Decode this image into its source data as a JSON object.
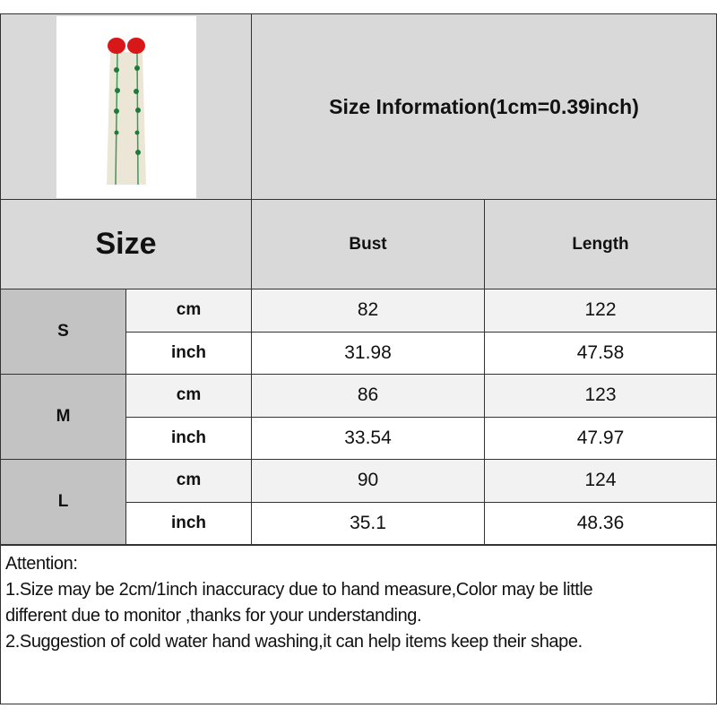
{
  "title": "Size Information(1cm=0.39inch)",
  "size_header": "Size",
  "columns": [
    "Bust",
    "Length"
  ],
  "rows": [
    {
      "size": "S",
      "cm": {
        "unit": "cm",
        "bust": "82",
        "length": "122"
      },
      "inch": {
        "unit": "inch",
        "bust": "31.98",
        "length": "47.58"
      }
    },
    {
      "size": "M",
      "cm": {
        "unit": "cm",
        "bust": "86",
        "length": "123"
      },
      "inch": {
        "unit": "inch",
        "bust": "33.54",
        "length": "47.97"
      }
    },
    {
      "size": "L",
      "cm": {
        "unit": "cm",
        "bust": "90",
        "length": "124"
      },
      "inch": {
        "unit": "inch",
        "bust": "35.1",
        "length": "48.36"
      }
    }
  ],
  "attention": {
    "heading": "Attention:",
    "line1": "1.Size may be 2cm/1inch inaccuracy due to hand measure,Color may be little",
    "line2": "different due to monitor ,thanks for your understanding.",
    "line3": "2.Suggestion of cold water hand washing,it can help items keep their shape."
  },
  "colors": {
    "header_bg": "#d9d9d9",
    "size_col_bg": "#c3c3c3",
    "cm_row_bg": "#f2f2f2",
    "dress_red": "#d81818",
    "dress_green": "#2a9a4a"
  }
}
